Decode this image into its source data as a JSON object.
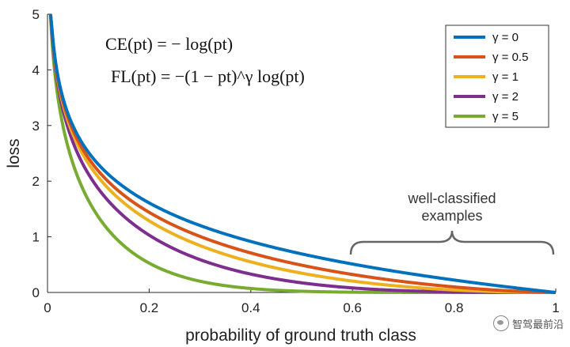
{
  "chart_data": {
    "type": "line",
    "xlabel": "probability of ground truth class",
    "ylabel": "loss",
    "xlim": [
      0,
      1
    ],
    "ylim": [
      0,
      5
    ],
    "xticks": [
      "0",
      "0.2",
      "0.4",
      "0.6",
      "0.8",
      "1"
    ],
    "yticks": [
      "0",
      "1",
      "2",
      "3",
      "4",
      "5"
    ],
    "grid": false,
    "legend_placement": "top-right",
    "formulas": [
      "CE(pt) = − log(pt)",
      "FL(pt) = −(1 − pt)^γ log(pt)"
    ],
    "series": [
      {
        "name": "γ = 0",
        "gamma": 0,
        "color": "#0072BD",
        "x": [
          0.01,
          0.05,
          0.1,
          0.2,
          0.3,
          0.4,
          0.5,
          0.6,
          0.7,
          0.8,
          0.9,
          1.0
        ],
        "y": [
          4.61,
          3.0,
          2.3,
          1.61,
          1.2,
          0.92,
          0.69,
          0.51,
          0.36,
          0.22,
          0.11,
          0.0
        ]
      },
      {
        "name": "γ = 0.5",
        "gamma": 0.5,
        "color": "#D95319",
        "x": [
          0.01,
          0.05,
          0.1,
          0.2,
          0.3,
          0.4,
          0.5,
          0.6,
          0.7,
          0.8,
          0.9,
          1.0
        ],
        "y": [
          4.58,
          2.92,
          2.18,
          1.44,
          1.0,
          0.71,
          0.49,
          0.32,
          0.2,
          0.1,
          0.03,
          0.0
        ]
      },
      {
        "name": "γ = 1",
        "gamma": 1,
        "color": "#EDB120",
        "x": [
          0.01,
          0.05,
          0.1,
          0.2,
          0.3,
          0.4,
          0.5,
          0.6,
          0.7,
          0.8,
          0.9,
          1.0
        ],
        "y": [
          4.56,
          2.85,
          2.07,
          1.29,
          0.84,
          0.55,
          0.35,
          0.2,
          0.11,
          0.04,
          0.01,
          0.0
        ]
      },
      {
        "name": "γ = 2",
        "gamma": 2,
        "color": "#7E2F8E",
        "x": [
          0.01,
          0.05,
          0.1,
          0.2,
          0.3,
          0.4,
          0.5,
          0.6,
          0.7,
          0.8,
          0.9,
          1.0
        ],
        "y": [
          4.51,
          2.7,
          1.87,
          1.03,
          0.59,
          0.33,
          0.17,
          0.08,
          0.03,
          0.01,
          0.0,
          0.0
        ]
      },
      {
        "name": "γ = 5",
        "gamma": 5,
        "color": "#77AC30",
        "x": [
          0.01,
          0.05,
          0.1,
          0.2,
          0.3,
          0.4,
          0.5,
          0.6,
          0.7,
          0.8,
          0.9,
          1.0
        ],
        "y": [
          4.38,
          2.32,
          1.36,
          0.53,
          0.2,
          0.07,
          0.02,
          0.01,
          0.0,
          0.0,
          0.0,
          0.0
        ]
      }
    ],
    "annotations": [
      {
        "text_lines": [
          "well-classified",
          "examples"
        ],
        "x_range": [
          0.6,
          1.0
        ]
      }
    ]
  },
  "watermark": {
    "text": "智驾最前沿"
  }
}
